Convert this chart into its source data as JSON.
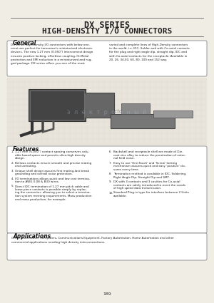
{
  "bg_color": "#f5f5f0",
  "page_bg": "#f0ede5",
  "title_line1": "DX SERIES",
  "title_line2": "HIGH-DENSITY I/O CONNECTORS",
  "header_line_color": "#555555",
  "section_general": "General",
  "general_text_col1": "DX series high-density I/O connectors with below one-\nment are perfect for tomorrow's miniaturized electronic\ndevices. The new 1.27 mm (0.050\") Interconnect design\nensures positive locking, effortless coupling, Hi-Metal\nprotection and EMI reduction in a miniaturized and rug-\nged package. DX series offers you one of the most",
  "general_text_col2": "varied and complete lines of High-Density connectors\nin the world, i.e. IDC, Solder and with Co-axial contacts\nfor the plug and right angle dip, straight dip, IDC and\nwith Co-axial contacts for the receptacle. Available in\n20, 26, 34,50, 60, 80, 100 and 152 way.",
  "section_features": "Features",
  "features_left": [
    "1.27 mm (0.050\") contact spacing conserves valu-\nable board space and permits ultra-high density\ndesign.",
    "Bellows contacts ensure smooth and precise mating\nand unmating.",
    "Unique shell design assures first mating-last break\ngrounding and overall noise protection.",
    "I/O terminations allows quick and low cost termina-\ntion to AWG 0.08 & B30 wires.",
    "Direct IDC termination of 1.27 mm pitch cable and\nloose piece contacts is possible simply by replac-\ning the connector, allowing you to select a termina-\ntion system meeting requirements. Mass production\nand mass production, for example."
  ],
  "features_right": [
    "Backshell and receptacle shell are made of Die-\ncast zinc alloy to reduce the penetration of exter-\nnal field noise.",
    "Easy to use 'One-Touch' and 'Screw' locking\nmechanism assures quick and easy 'positive' clo-\nsures every time.",
    "Termination method is available in IDC, Soldering,\nRight Angle Dip, Straight Dip and SMT.",
    "DX with 3 contacts and 3 cavities for Co-axial\ncontacts are solely introduced to meet the needs\nof high speed data transmission.",
    "Standard Plug-in type for interface between 2 Units\navailable."
  ],
  "section_applications": "Applications",
  "applications_text": "Office Automation, Computers, Communications Equipment, Factory Automation, Home Automation and other\ncommercial applications needing high density interconnections.",
  "page_number": "189",
  "box_color": "#ffffff",
  "box_border": "#888888"
}
